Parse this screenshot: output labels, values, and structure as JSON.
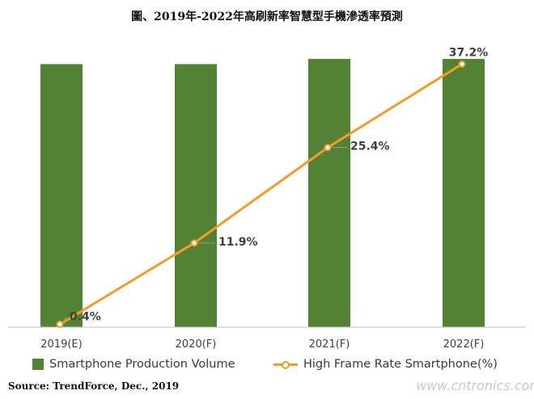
{
  "colors": {
    "bar": "#548235",
    "line": "#f39c2a",
    "axis": "#bfbfbf",
    "text": "#404040"
  },
  "chart_data": {
    "type": "bar",
    "title": "圖、2019年-2022年高刷新率智慧型手機滲透率預測",
    "categories": [
      "2019(E)",
      "2020(F)",
      "2021(F)",
      "2022(F)"
    ],
    "series": [
      {
        "name": "Smartphone Production Volume",
        "type": "bar",
        "values": [
          100,
          100,
          102,
          102
        ]
      },
      {
        "name": "High Frame Rate Smartphone(%)",
        "type": "line",
        "values": [
          0.4,
          11.9,
          25.4,
          37.2
        ],
        "labels": [
          "0.4%",
          "11.9%",
          "25.4%",
          "37.2%"
        ],
        "ylim": [
          0,
          38.5
        ]
      }
    ],
    "bar_ylim": [
      0,
      103.5
    ],
    "xlabel": "",
    "ylabel": "",
    "legend": "bottom"
  },
  "source": "Source: TrendForce, Dec., 2019",
  "watermark": "www.cntronics.com"
}
